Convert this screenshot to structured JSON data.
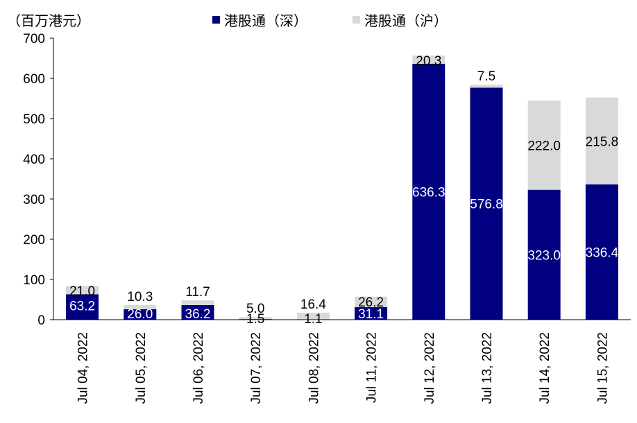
{
  "chart_data": {
    "type": "bar",
    "stacked": true,
    "unit_label": "（百万港元）",
    "categories": [
      "Jul 04, 2022",
      "Jul 05, 2022",
      "Jul 06, 2022",
      "Jul 07, 2022",
      "Jul 08, 2022",
      "Jul 11, 2022",
      "Jul 12, 2022",
      "Jul 13, 2022",
      "Jul 14, 2022",
      "Jul 15, 2022"
    ],
    "series": [
      {
        "name": "港股通（深）",
        "color": "#000080",
        "values": [
          63.2,
          26.0,
          36.2,
          1.5,
          1.1,
          31.1,
          636.3,
          576.8,
          323.0,
          336.4
        ],
        "labels": [
          "63.2",
          "26.0",
          "36.2",
          "1.5",
          "1.1",
          "31.1",
          "636.3",
          "576.8",
          "323.0",
          "336.4"
        ]
      },
      {
        "name": "港股通（沪）",
        "color": "#d9d9d9",
        "values": [
          21.0,
          10.3,
          11.7,
          5.0,
          16.4,
          26.2,
          20.3,
          7.5,
          222.0,
          215.8
        ],
        "labels": [
          "21.0",
          "10.3",
          "11.7",
          "5.0",
          "16.4",
          "26.2",
          "20.3",
          "7.5",
          "222.0",
          "215.8"
        ]
      }
    ],
    "ylim": [
      0,
      700
    ],
    "yticks": [
      0,
      100,
      200,
      300,
      400,
      500,
      600,
      700
    ],
    "legend_position": "top",
    "grid": false
  }
}
